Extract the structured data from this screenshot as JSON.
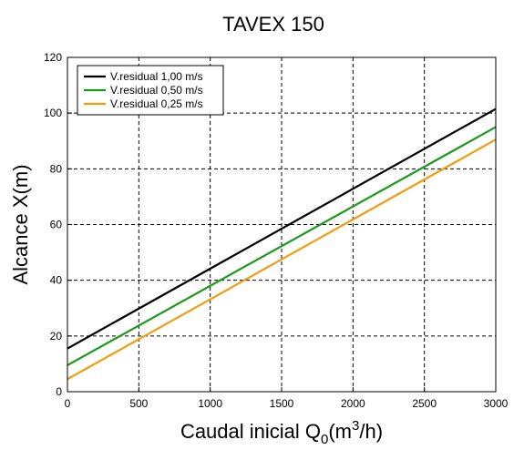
{
  "chart_data": {
    "type": "line",
    "title": "TAVEX  150",
    "xlabel": {
      "main": "Caudal inicial Q",
      "sub": "0",
      "mid": "(m",
      "sup": "3",
      "end": "/h)"
    },
    "ylabel": "Alcance X(m)",
    "xlim": [
      0,
      3000
    ],
    "ylim": [
      0,
      120
    ],
    "xticks": [
      0,
      500,
      1000,
      1500,
      2000,
      2500,
      3000
    ],
    "yticks": [
      0,
      20,
      40,
      60,
      80,
      100,
      120
    ],
    "xtick_labels": [
      "0",
      "500",
      "1000",
      "1500",
      "2000",
      "2500",
      "3000"
    ],
    "ytick_labels": [
      "0",
      "20",
      "40",
      "60",
      "80",
      "100",
      "120"
    ],
    "grid": true,
    "legend_position": "top-left",
    "series": [
      {
        "name": "V.residual 1,00 m/s",
        "color": "#000000",
        "x": [
          0,
          3000
        ],
        "y": [
          15.5,
          101.5
        ]
      },
      {
        "name": "V.residual 0,50 m/s",
        "color": "#1a9a1a",
        "x": [
          0,
          3000
        ],
        "y": [
          9.5,
          95
        ]
      },
      {
        "name": "V.residual 0,25 m/s",
        "color": "#f39c12",
        "x": [
          0,
          3000
        ],
        "y": [
          4.5,
          90.5
        ]
      }
    ]
  }
}
